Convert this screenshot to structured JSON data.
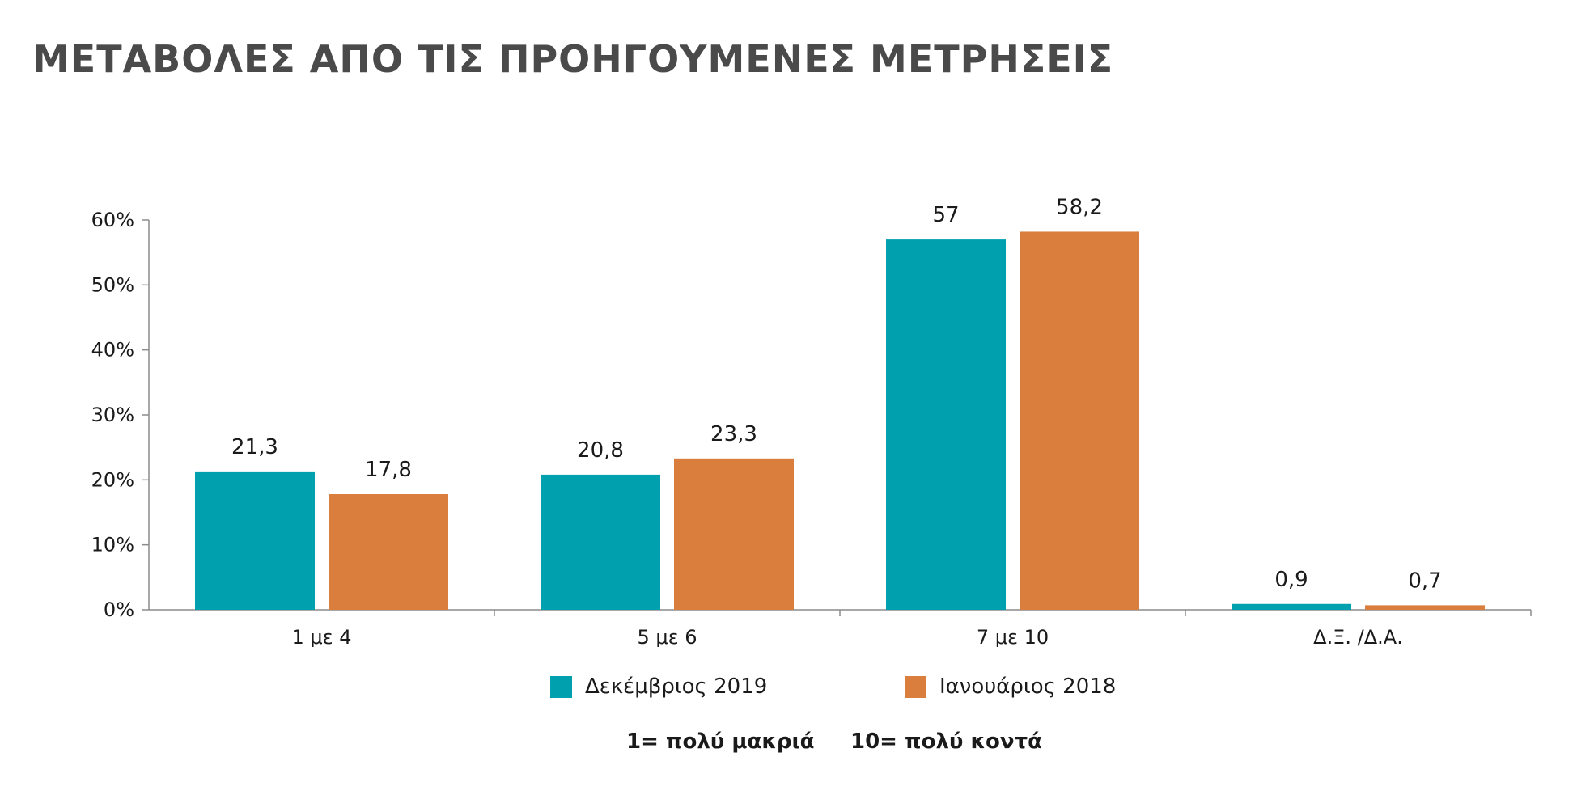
{
  "title": "ΜΕΤΑΒΟΛΕΣ ΑΠΟ ΤΙΣ ΠΡΟΗΓΟΥΜΕΝΕΣ ΜΕΤΡΗΣΕΙΣ",
  "chart_data": {
    "type": "bar",
    "categories": [
      "1 με 4",
      "5 με 6",
      "7 με 10",
      "Δ.Ξ. /Δ.Α."
    ],
    "series": [
      {
        "name": "Δεκέμβριος 2019",
        "color": "#00A0AE",
        "values": [
          21.3,
          20.8,
          57,
          0.9
        ],
        "labels": [
          "21,3",
          "20,8",
          "57",
          "0,9"
        ]
      },
      {
        "name": "Ιανουάριος 2018",
        "color": "#D97E3D",
        "values": [
          17.8,
          23.3,
          58.2,
          0.7
        ],
        "labels": [
          "17,8",
          "23,3",
          "58,2",
          "0,7"
        ]
      }
    ],
    "ylim": [
      0,
      60
    ],
    "yticks": [
      "0%",
      "10%",
      "20%",
      "30%",
      "40%",
      "50%",
      "60%"
    ],
    "grid": false,
    "legend_position": "bottom"
  },
  "notes": [
    "1= πολύ μακριά",
    "10= πολύ κοντά"
  ]
}
